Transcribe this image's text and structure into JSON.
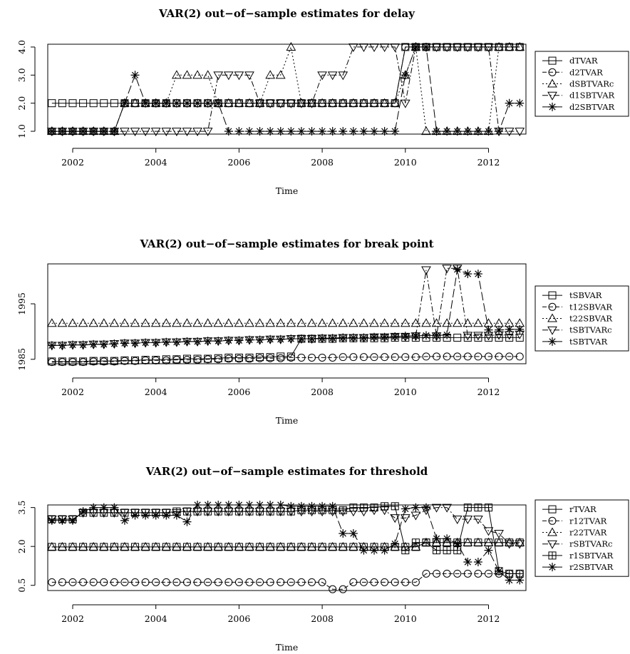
{
  "chart_data": [
    {
      "type": "line",
      "title": "VAR(2) out−of−sample estimates for delay",
      "xlabel": "Time",
      "ylabel": "",
      "xlim": [
        2001.4,
        2012.9
      ],
      "ylim": [
        0.9,
        4.1
      ],
      "x_ticks": [
        2002,
        2004,
        2006,
        2008,
        2010,
        2012
      ],
      "y_ticks": [
        1,
        2,
        3,
        4
      ],
      "y_tick_labels": [
        "1.0",
        "2.0",
        "3.0",
        "4.0"
      ],
      "x_start": 2001.5,
      "x_step": 0.25,
      "legend_position": "right",
      "series": [
        {
          "name": "dTVAR",
          "marker": "square",
          "dash": "solid",
          "values": [
            2,
            2,
            2,
            2,
            2,
            2,
            2,
            2,
            2,
            2,
            2,
            2,
            2,
            2,
            2,
            2,
            2,
            2,
            2,
            2,
            2,
            2,
            2,
            2,
            2,
            2,
            2,
            2,
            2,
            2,
            2,
            2,
            2,
            2,
            4,
            4,
            4,
            4,
            4,
            4,
            4,
            4,
            4,
            4,
            4,
            4
          ]
        },
        {
          "name": "d2TVAR",
          "marker": "circle",
          "dash": "6,3",
          "values": [
            1,
            1,
            1,
            1,
            1,
            1,
            1,
            2,
            2,
            2,
            2,
            2,
            2,
            2,
            2,
            2,
            2,
            2,
            2,
            2,
            2,
            2,
            2,
            2,
            2,
            2,
            2,
            2,
            2,
            2,
            2,
            2,
            2,
            2,
            4,
            4,
            4,
            4,
            4,
            4,
            4,
            4,
            4,
            4,
            4,
            4
          ]
        },
        {
          "name": "dSBTVARc",
          "marker": "triangle-up",
          "dash": "2,3",
          "values": [
            1,
            1,
            1,
            1,
            1,
            1,
            1,
            2,
            2,
            2,
            2,
            2,
            3,
            3,
            3,
            3,
            2,
            2,
            2,
            2,
            2,
            3,
            3,
            4,
            2,
            2,
            2,
            2,
            2,
            2,
            2,
            2,
            2,
            2,
            3,
            4,
            1,
            1,
            1,
            1,
            1,
            1,
            1,
            4,
            4,
            4
          ]
        },
        {
          "name": "d1SBTVAR",
          "marker": "triangle-down",
          "dash": "8,3,2,3",
          "values": [
            1,
            1,
            1,
            1,
            1,
            1,
            1,
            1,
            1,
            1,
            1,
            1,
            1,
            1,
            1,
            1,
            3,
            3,
            3,
            3,
            2,
            2,
            2,
            2,
            2,
            2,
            3,
            3,
            3,
            4,
            4,
            4,
            4,
            4,
            2,
            4,
            4,
            4,
            4,
            4,
            4,
            4,
            4,
            1,
            1,
            1
          ]
        },
        {
          "name": "d2SBTVAR",
          "marker": "asterisk",
          "dash": "12,4",
          "values": [
            1,
            1,
            1,
            1,
            1,
            1,
            1,
            2,
            3,
            2,
            2,
            2,
            2,
            2,
            2,
            2,
            2,
            1,
            1,
            1,
            1,
            1,
            1,
            1,
            1,
            1,
            1,
            1,
            1,
            1,
            1,
            1,
            1,
            1,
            3,
            4,
            4,
            1,
            1,
            1,
            1,
            1,
            1,
            1,
            2,
            2
          ]
        }
      ]
    },
    {
      "type": "line",
      "title": "VAR(2) out−of−sample estimates for break point",
      "xlabel": "Time",
      "ylabel": "",
      "xlim": [
        2001.4,
        2012.9
      ],
      "ylim": [
        1984.2,
        2002.2
      ],
      "x_ticks": [
        2002,
        2004,
        2006,
        2008,
        2010,
        2012
      ],
      "y_ticks": [
        1985,
        1995
      ],
      "y_tick_labels": [
        "1985",
        "1995"
      ],
      "x_start": 2001.5,
      "x_step": 0.25,
      "legend_position": "right",
      "series": [
        {
          "name": "tSBVAR",
          "marker": "square",
          "dash": "solid",
          "values": [
            1984.6,
            1984.6,
            1984.6,
            1984.6,
            1984.7,
            1984.7,
            1984.7,
            1984.8,
            1984.8,
            1984.9,
            1984.9,
            1985.0,
            1985.0,
            1985.1,
            1985.1,
            1985.1,
            1985.2,
            1985.3,
            1985.3,
            1985.3,
            1985.4,
            1985.4,
            1985.5,
            1985.5,
            1988.7,
            1988.7,
            1988.7,
            1988.7,
            1988.8,
            1988.8,
            1988.8,
            1988.8,
            1988.8,
            1988.9,
            1988.9,
            1988.9,
            1988.9,
            1988.9,
            1988.9,
            1988.9,
            1988.9,
            1988.9,
            1988.9,
            1988.9,
            1988.9,
            1988.9
          ]
        },
        {
          "name": "t12SBVAR",
          "marker": "circle",
          "dash": "6,3",
          "values": [
            1984.5,
            1984.5,
            1984.5,
            1984.5,
            1984.6,
            1984.6,
            1984.6,
            1984.7,
            1984.7,
            1984.8,
            1984.8,
            1984.8,
            1984.9,
            1984.9,
            1984.9,
            1985.0,
            1985.0,
            1985.1,
            1985.1,
            1985.1,
            1985.2,
            1985.2,
            1985.2,
            1985.3,
            1985.3,
            1985.3,
            1985.3,
            1985.3,
            1985.4,
            1985.4,
            1985.4,
            1985.4,
            1985.4,
            1985.4,
            1985.4,
            1985.4,
            1985.5,
            1985.5,
            1985.5,
            1985.5,
            1985.5,
            1985.5,
            1985.5,
            1985.5,
            1985.5,
            1985.5
          ]
        },
        {
          "name": "t22SBVAR",
          "marker": "triangle-up",
          "dash": "2,3",
          "values": [
            1991.5,
            1991.5,
            1991.5,
            1991.5,
            1991.5,
            1991.5,
            1991.5,
            1991.5,
            1991.5,
            1991.5,
            1991.5,
            1991.5,
            1991.5,
            1991.5,
            1991.5,
            1991.5,
            1991.5,
            1991.5,
            1991.5,
            1991.5,
            1991.5,
            1991.5,
            1991.5,
            1991.5,
            1991.5,
            1991.5,
            1991.5,
            1991.5,
            1991.5,
            1991.5,
            1991.5,
            1991.5,
            1991.5,
            1991.5,
            1991.5,
            1991.5,
            1991.5,
            1991.5,
            1991.5,
            1991.5,
            1991.5,
            1991.5,
            1991.5,
            1991.5,
            1991.5,
            1991.5
          ]
        },
        {
          "name": "tSBTVARc",
          "marker": "triangle-down",
          "dash": "8,3,2,3",
          "values": [
            1987.5,
            1987.5,
            1987.6,
            1987.6,
            1987.7,
            1987.7,
            1987.8,
            1987.9,
            1987.9,
            1988.0,
            1988.0,
            1988.1,
            1988.1,
            1988.2,
            1988.2,
            1988.3,
            1988.3,
            1988.4,
            1988.4,
            1988.5,
            1988.5,
            1988.6,
            1988.6,
            1988.7,
            1988.7,
            1988.7,
            1988.8,
            1988.8,
            1988.9,
            1988.9,
            1988.9,
            1989.0,
            1989.0,
            1989.1,
            1989.1,
            1989.2,
            2001.1,
            1989.2,
            2001.4,
            2001.4,
            1989.3,
            1989.3,
            1989.3,
            1989.4,
            1989.4,
            1989.5
          ]
        },
        {
          "name": "tSBTVAR",
          "marker": "asterisk",
          "dash": "12,4",
          "values": [
            1987.5,
            1987.5,
            1987.6,
            1987.6,
            1987.7,
            1987.7,
            1987.8,
            1987.9,
            1987.9,
            1988.0,
            1988.0,
            1988.1,
            1988.1,
            1988.2,
            1988.2,
            1988.3,
            1988.3,
            1988.4,
            1988.4,
            1988.5,
            1988.5,
            1988.6,
            1988.6,
            1988.7,
            1988.7,
            1988.7,
            1988.8,
            1988.8,
            1988.9,
            1988.9,
            1988.9,
            1989.0,
            1989.0,
            1989.1,
            1989.2,
            1989.2,
            1989.3,
            1989.3,
            1989.4,
            2001.2,
            2000.4,
            2000.4,
            1990.3,
            1990.3,
            1990.4,
            1990.4
          ]
        }
      ]
    },
    {
      "type": "line",
      "title": "VAR(2) out−of−sample estimates for threshold",
      "xlabel": "Time",
      "ylabel": "",
      "xlim": [
        2001.4,
        2012.9
      ],
      "ylim": [
        0.3,
        3.6
      ],
      "x_ticks": [
        2002,
        2004,
        2006,
        2008,
        2010,
        2012
      ],
      "y_ticks": [
        0.5,
        2.0,
        3.5
      ],
      "y_tick_labels": [
        "0.5",
        "2.0",
        "3.5"
      ],
      "x_start": 2001.5,
      "x_step": 0.25,
      "legend_position": "right",
      "series": [
        {
          "name": "rTVAR",
          "marker": "square",
          "dash": "solid",
          "values": [
            1.98,
            1.98,
            1.98,
            1.98,
            1.98,
            1.98,
            1.98,
            1.98,
            1.98,
            1.98,
            1.98,
            1.98,
            1.98,
            1.98,
            1.98,
            1.98,
            1.98,
            1.98,
            1.98,
            1.98,
            1.98,
            1.98,
            1.98,
            1.98,
            1.98,
            1.98,
            1.98,
            1.98,
            1.98,
            1.98,
            1.98,
            1.98,
            1.98,
            1.98,
            1.98,
            1.98,
            2.15,
            2.15,
            2.15,
            2.15,
            2.15,
            2.15,
            2.15,
            2.15,
            2.15,
            2.15
          ]
        },
        {
          "name": "r12TVAR",
          "marker": "circle",
          "dash": "6,3",
          "values": [
            0.62,
            0.62,
            0.62,
            0.62,
            0.62,
            0.62,
            0.62,
            0.62,
            0.62,
            0.62,
            0.62,
            0.62,
            0.62,
            0.62,
            0.62,
            0.62,
            0.62,
            0.62,
            0.62,
            0.62,
            0.62,
            0.62,
            0.62,
            0.62,
            0.62,
            0.62,
            0.62,
            0.35,
            0.35,
            0.62,
            0.62,
            0.62,
            0.62,
            0.62,
            0.62,
            0.62,
            0.95,
            0.95,
            0.95,
            0.95,
            0.95,
            0.95,
            0.95,
            0.95,
            0.95,
            0.95
          ]
        },
        {
          "name": "r22TVAR",
          "marker": "triangle-up",
          "dash": "2,3",
          "values": [
            1.98,
            1.98,
            1.98,
            1.98,
            1.98,
            1.98,
            1.98,
            1.98,
            1.98,
            1.98,
            1.98,
            1.98,
            1.98,
            1.98,
            1.98,
            1.98,
            1.98,
            1.98,
            1.98,
            1.98,
            1.98,
            1.98,
            1.98,
            1.98,
            1.98,
            1.98,
            1.98,
            1.98,
            1.98,
            1.98,
            1.98,
            1.98,
            1.98,
            1.98,
            1.98,
            1.98,
            2.15,
            2.15,
            2.15,
            2.15,
            2.15,
            2.15,
            2.15,
            2.15,
            2.15,
            2.15
          ]
        },
        {
          "name": "rSBTVARc",
          "marker": "triangle-down",
          "dash": "8,3,2,3",
          "values": [
            3.05,
            3.05,
            3.05,
            3.3,
            3.3,
            3.3,
            3.3,
            3.3,
            3.3,
            3.3,
            3.3,
            3.3,
            3.3,
            3.35,
            3.35,
            3.35,
            3.35,
            3.35,
            3.35,
            3.35,
            3.35,
            3.35,
            3.35,
            3.35,
            3.35,
            3.35,
            3.35,
            3.35,
            3.35,
            3.35,
            3.35,
            3.4,
            3.4,
            3.1,
            3.1,
            3.2,
            3.4,
            3.5,
            3.5,
            3.05,
            3.05,
            3.05,
            2.6,
            2.5,
            2.1,
            2.1
          ]
        },
        {
          "name": "r1SBTVAR",
          "marker": "box-cross",
          "dash": "solid",
          "values": [
            3.05,
            3.05,
            3.05,
            3.3,
            3.3,
            3.3,
            3.3,
            3.3,
            3.3,
            3.3,
            3.3,
            3.3,
            3.35,
            3.35,
            3.35,
            3.35,
            3.35,
            3.35,
            3.35,
            3.35,
            3.35,
            3.35,
            3.35,
            3.35,
            3.4,
            3.4,
            3.4,
            3.4,
            3.4,
            3.5,
            3.5,
            3.5,
            3.55,
            3.55,
            1.85,
            2.15,
            2.15,
            1.85,
            1.85,
            1.85,
            3.5,
            3.5,
            3.5,
            1.05,
            0.95,
            0.95
          ]
        },
        {
          "name": "r2SBTVAR",
          "marker": "asterisk",
          "dash": "12,4",
          "values": [
            3.0,
            3.0,
            3.0,
            3.35,
            3.5,
            3.5,
            3.5,
            3.0,
            3.2,
            3.2,
            3.2,
            3.2,
            3.2,
            2.95,
            3.6,
            3.6,
            3.6,
            3.6,
            3.6,
            3.6,
            3.6,
            3.6,
            3.6,
            3.55,
            3.55,
            3.55,
            3.55,
            3.55,
            2.5,
            2.5,
            1.85,
            1.85,
            1.85,
            2.1,
            3.45,
            3.5,
            3.5,
            2.3,
            2.3,
            2.1,
            1.4,
            1.4,
            1.85,
            1.05,
            0.7,
            0.7
          ]
        }
      ]
    }
  ]
}
